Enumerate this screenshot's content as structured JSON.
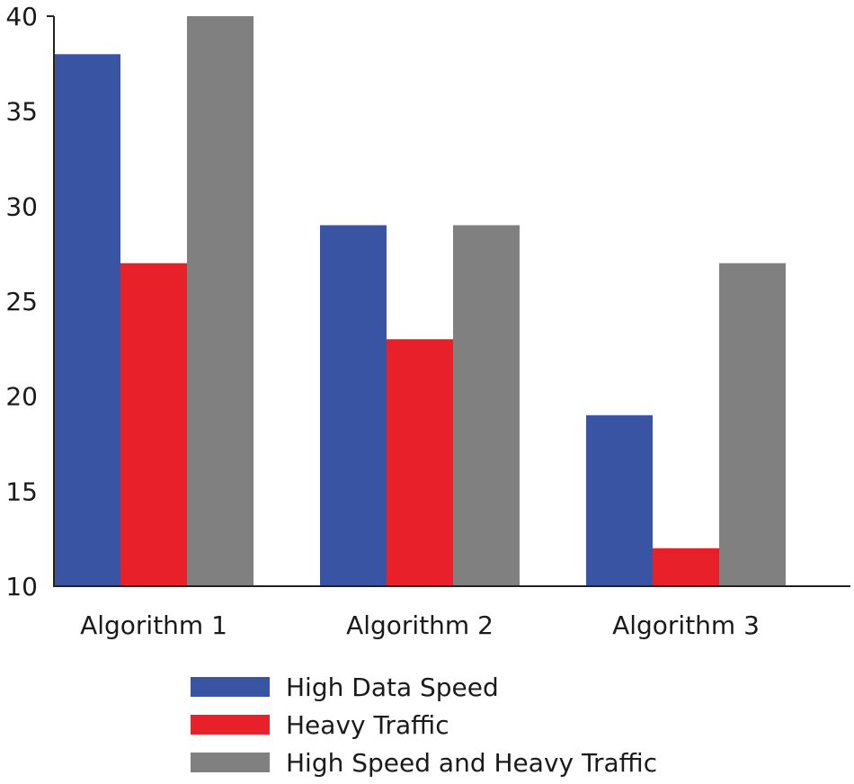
{
  "chart_data": {
    "type": "bar",
    "title": "",
    "xlabel": "",
    "ylabel": "",
    "ylim": [
      10,
      40
    ],
    "yticks": [
      10,
      15,
      20,
      25,
      30,
      35,
      40
    ],
    "grid": false,
    "legend_position": "bottom-center",
    "categories": [
      "Algorithm 1",
      "Algorithm 2",
      "Algorithm 3"
    ],
    "series": [
      {
        "name": "High Data Speed",
        "color": "#3a54a4",
        "values": [
          38,
          29,
          19
        ]
      },
      {
        "name": "Heavy Traffic",
        "color": "#e8202a",
        "values": [
          27,
          23,
          12
        ]
      },
      {
        "name": "High Speed and Heavy Traffic",
        "color": "#808080",
        "values": [
          40,
          29,
          27
        ]
      }
    ]
  }
}
